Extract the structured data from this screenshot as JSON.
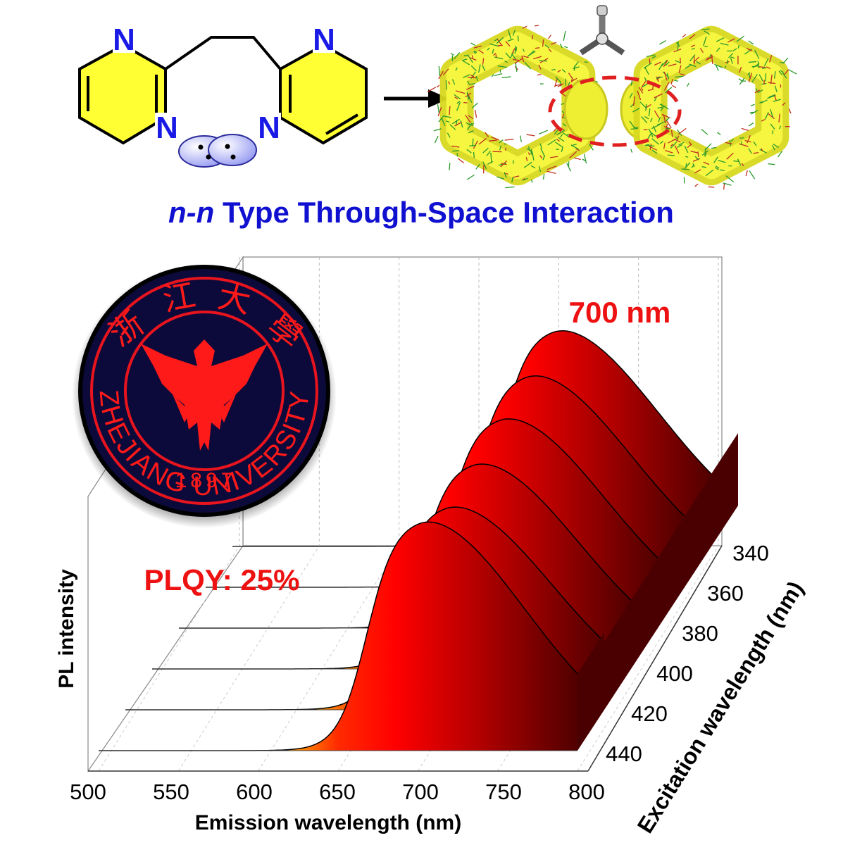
{
  "headline": {
    "prefix": "n-n",
    "rest": " Type Through-Space Interaction"
  },
  "molecule": {
    "atoms": [
      "N",
      "N",
      "N",
      "N"
    ]
  },
  "seal": {
    "year": "1897",
    "arc_text": "ZHEJIANG UNIVERSITY",
    "chinese": [
      "浙",
      "江",
      "大",
      "學"
    ]
  },
  "annotations": {
    "peak": "700 nm",
    "plqy": "PLQY: 25%"
  },
  "colors": {
    "headline": "#1010d0",
    "annotation": "#ee1111",
    "atom": "#1a1ae6",
    "ring": "#ffff33",
    "seal_ring": "#e8141e",
    "seal_bg": "#0c0a3a"
  },
  "chart_data": {
    "type": "area",
    "projection": "3d-waterfall",
    "xlabel": "Emission wavelength (nm)",
    "ylabel": "PL intensity",
    "zlabel": "Excitation wavelength (nm)",
    "xlim": [
      500,
      800
    ],
    "xticks": [
      "500",
      "550",
      "600",
      "650",
      "700",
      "750",
      "800"
    ],
    "zticks": [
      "340",
      "360",
      "380",
      "400",
      "420",
      "440"
    ],
    "series": [
      {
        "name": "340",
        "peak_x": 700,
        "intensity": 1.0
      },
      {
        "name": "360",
        "peak_x": 700,
        "intensity": 0.98
      },
      {
        "name": "380",
        "peak_x": 700,
        "intensity": 0.97
      },
      {
        "name": "400",
        "peak_x": 700,
        "intensity": 0.95
      },
      {
        "name": "420",
        "peak_x": 700,
        "intensity": 0.94
      },
      {
        "name": "440",
        "peak_x": 700,
        "intensity": 1.06
      }
    ]
  }
}
